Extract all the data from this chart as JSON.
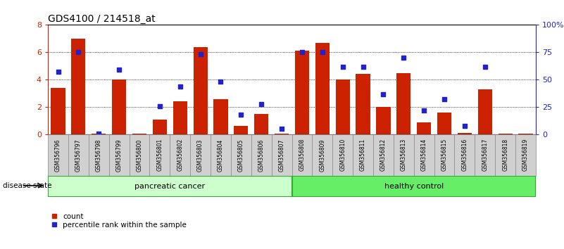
{
  "title": "GDS4100 / 214518_at",
  "samples": [
    "GSM356796",
    "GSM356797",
    "GSM356798",
    "GSM356799",
    "GSM356800",
    "GSM356801",
    "GSM356802",
    "GSM356803",
    "GSM356804",
    "GSM356805",
    "GSM356806",
    "GSM356807",
    "GSM356808",
    "GSM356809",
    "GSM356810",
    "GSM356811",
    "GSM356812",
    "GSM356813",
    "GSM356814",
    "GSM356815",
    "GSM356816",
    "GSM356817",
    "GSM356818",
    "GSM356819"
  ],
  "counts": [
    3.4,
    7.0,
    0.05,
    4.0,
    0.05,
    1.1,
    2.4,
    6.4,
    2.6,
    0.65,
    1.5,
    0.05,
    6.1,
    6.7,
    4.0,
    4.4,
    2.0,
    4.5,
    0.9,
    1.6,
    0.1,
    3.3,
    0.05,
    0.05
  ],
  "percentiles": [
    57,
    75,
    1,
    59,
    null,
    26,
    44,
    73,
    48,
    18,
    28,
    5,
    75,
    75,
    62,
    62,
    37,
    70,
    22,
    32,
    8,
    62,
    null,
    null
  ],
  "bar_color": "#cc2200",
  "dot_color": "#2222cc",
  "pc_color": "#ccffcc",
  "hc_color": "#66ee66",
  "border_color": "#33aa33",
  "ylim_left": [
    0,
    8
  ],
  "ylim_right": [
    0,
    100
  ],
  "yticks_left": [
    0,
    2,
    4,
    6,
    8
  ],
  "ytick_labels_right": [
    "0",
    "25",
    "50",
    "75",
    "100%"
  ],
  "yticks_right": [
    0,
    25,
    50,
    75,
    100
  ],
  "n_pancreatic": 12,
  "n_healthy": 12
}
